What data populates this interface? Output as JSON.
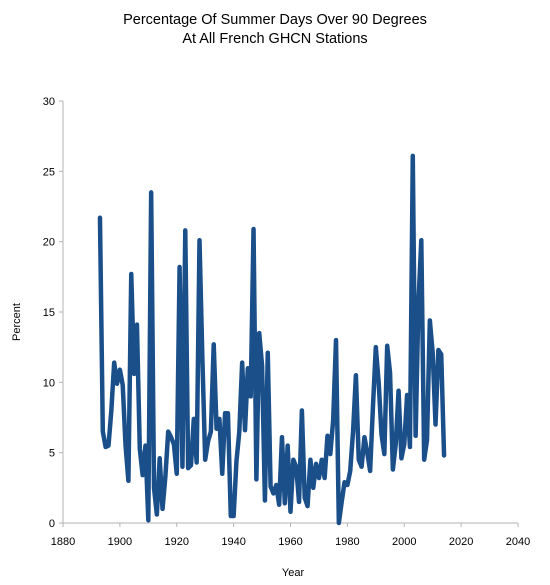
{
  "chart_data": {
    "type": "line",
    "title": [
      "Percentage Of Summer Days Over 90 Degrees",
      "At All French GHCN Stations"
    ],
    "xlabel": "Year",
    "ylabel": "Percent",
    "xlim": [
      1880,
      2040
    ],
    "ylim": [
      0,
      30
    ],
    "xticks": [
      1880,
      1900,
      1920,
      1940,
      1960,
      1980,
      2000,
      2020,
      2040
    ],
    "yticks": [
      0,
      5,
      10,
      15,
      20,
      25,
      30
    ],
    "grid": false,
    "legend": "none",
    "series": [
      {
        "color": "#1a4f8a",
        "x": [
          1893,
          1894,
          1895,
          1896,
          1897,
          1898,
          1899,
          1900,
          1901,
          1902,
          1903,
          1904,
          1905,
          1906,
          1907,
          1908,
          1909,
          1910,
          1911,
          1912,
          1913,
          1914,
          1915,
          1916,
          1917,
          1918,
          1919,
          1920,
          1921,
          1922,
          1923,
          1924,
          1925,
          1926,
          1927,
          1928,
          1929,
          1930,
          1931,
          1932,
          1933,
          1934,
          1935,
          1936,
          1937,
          1938,
          1939,
          1940,
          1941,
          1942,
          1943,
          1944,
          1945,
          1946,
          1947,
          1948,
          1949,
          1950,
          1951,
          1952,
          1953,
          1954,
          1955,
          1956,
          1957,
          1958,
          1959,
          1960,
          1961,
          1962,
          1963,
          1964,
          1965,
          1966,
          1967,
          1968,
          1969,
          1970,
          1971,
          1972,
          1973,
          1974,
          1975,
          1976,
          1977,
          1978,
          1979,
          1980,
          1981,
          1982,
          1983,
          1984,
          1985,
          1986,
          1987,
          1988,
          1989,
          1990,
          1991,
          1992,
          1993,
          1994,
          1995,
          1996,
          1997,
          1998,
          1999,
          2000,
          2001,
          2002,
          2003,
          2004,
          2005,
          2006,
          2007,
          2008,
          2009,
          2010,
          2011,
          2012,
          2013,
          2014
        ],
        "y": [
          21.7,
          6.5,
          5.4,
          5.5,
          8.0,
          11.4,
          9.9,
          10.9,
          9.8,
          5.5,
          3.0,
          17.7,
          10.6,
          14.1,
          5.3,
          3.4,
          5.5,
          0.2,
          23.5,
          2.5,
          0.6,
          4.6,
          1.0,
          3.3,
          6.5,
          6.1,
          5.6,
          3.5,
          18.2,
          4.0,
          20.8,
          3.9,
          4.1,
          7.4,
          4.3,
          20.1,
          11.8,
          4.5,
          5.8,
          6.5,
          12.7,
          6.7,
          7.4,
          3.5,
          7.8,
          7.8,
          0.5,
          0.5,
          4.4,
          6.5,
          11.4,
          6.6,
          11.0,
          9.0,
          20.9,
          3.1,
          13.5,
          11.2,
          1.6,
          12.1,
          2.6,
          2.1,
          2.7,
          1.3,
          6.1,
          1.4,
          5.5,
          0.8,
          4.5,
          4.0,
          1.5,
          8.0,
          1.8,
          1.2,
          4.5,
          2.5,
          4.2,
          3.2,
          4.5,
          3.2,
          6.2,
          4.9,
          7.3,
          13.0,
          0.0,
          1.5,
          2.9,
          2.7,
          3.7,
          6.5,
          10.5,
          4.5,
          4.0,
          6.1,
          5.0,
          3.7,
          8.3,
          12.5,
          10.0,
          6.3,
          4.9,
          12.6,
          10.7,
          3.8,
          5.6,
          9.4,
          4.6,
          5.6,
          9.1,
          5.4,
          26.1,
          6.2,
          15.7,
          20.1,
          4.5,
          5.9,
          14.4,
          12.1,
          7.0,
          12.3,
          12.0,
          4.8
        ]
      }
    ]
  }
}
